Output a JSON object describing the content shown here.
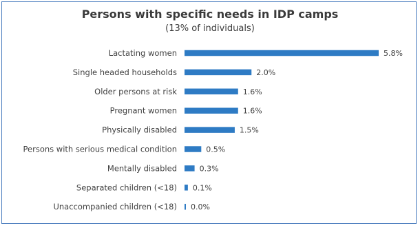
{
  "chart_data": {
    "type": "bar",
    "orientation": "horizontal",
    "title": "Persons with specific needs in IDP camps",
    "subtitle": "(13% of individuals)",
    "categories": [
      "Lactating women",
      "Single headed households",
      "Older persons at risk",
      "Pregnant women",
      "Physically disabled",
      "Persons with serious medical condition",
      "Mentally disabled",
      "Separated children (<18)",
      "Unaccompanied children (<18)"
    ],
    "values": [
      5.8,
      2.0,
      1.6,
      1.6,
      1.5,
      0.5,
      0.3,
      0.1,
      0.0
    ],
    "value_labels": [
      "5.8%",
      "2.0%",
      "1.6%",
      "1.6%",
      "1.5%",
      "0.5%",
      "0.3%",
      "0.1%",
      "0.0%"
    ],
    "xlim": [
      0,
      5.8
    ],
    "grid": false,
    "legend": "none",
    "colors": {
      "bar": "#2e7bc4",
      "frame": "#4d7fbf",
      "text": "#404040"
    }
  }
}
